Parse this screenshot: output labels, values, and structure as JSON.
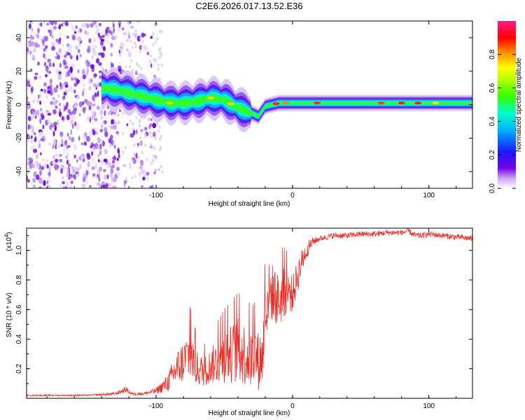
{
  "title": "C2E6.2026.017.13.52.E36",
  "chart_data": [
    {
      "type": "heatmap",
      "name": "spectrogram",
      "xlabel": "Height of straight line (km)",
      "ylabel": "Frequency (Hz)",
      "xlim": [
        -195,
        132
      ],
      "ylim": [
        -50,
        50
      ],
      "xticks": [
        -100,
        0,
        100
      ],
      "yticks": [
        -40,
        -20,
        0,
        20,
        40
      ],
      "xtick_labels": [
        "-100",
        "0",
        "100"
      ],
      "ytick_labels": [
        "-40",
        "-20",
        "0",
        "20",
        "40"
      ],
      "colorbar": {
        "label": "Normalized spectral amplitude",
        "range": [
          0,
          1
        ],
        "ticks": [
          0.0,
          0.2,
          0.4,
          0.6,
          0.8
        ],
        "tick_labels": [
          "0.0",
          "0.2",
          "0.4",
          "0.6",
          "0.8"
        ],
        "colormap": "rainbow (white-violet-blue-cyan-green-yellow-red-magenta)"
      },
      "trace": {
        "x": [
          -140,
          -130,
          -120,
          -110,
          -100,
          -90,
          -80,
          -70,
          -60,
          -50,
          -40,
          -30,
          -25,
          -20,
          -10,
          0,
          20,
          40,
          60,
          80,
          100,
          120,
          132
        ],
        "y": [
          10,
          9,
          7,
          5,
          3,
          1,
          1,
          2,
          4,
          3,
          -2,
          -5,
          -7,
          -1,
          1,
          1,
          1,
          1,
          1,
          1,
          1,
          1,
          1
        ]
      }
    },
    {
      "type": "line",
      "name": "snr",
      "xlabel": "Height of straight line (km)",
      "ylabel": "SNR (10 * v/v)",
      "y_multiplier": "(x10",
      "y_multiplier_exp": "4",
      "xlim": [
        -195,
        132
      ],
      "ylim": [
        0,
        1.15
      ],
      "xticks": [
        -100,
        0,
        100
      ],
      "yticks": [
        0.2,
        0.4,
        0.6,
        0.8,
        1.0
      ],
      "xtick_labels": [
        "-100",
        "0",
        "100"
      ],
      "ytick_labels": [
        "0.2",
        "0.4",
        "0.6",
        "0.8",
        "1.0"
      ],
      "color": "#e8312b",
      "series": [
        {
          "name": "SNR",
          "x": [
            -195,
            -150,
            -130,
            -122,
            -118,
            -110,
            -100,
            -92,
            -85,
            -80,
            -75,
            -70,
            -65,
            -60,
            -55,
            -50,
            -45,
            -40,
            -35,
            -30,
            -27,
            -25,
            -22,
            -20,
            -18,
            -16,
            -13,
            -10,
            -7,
            -5,
            -2,
            0,
            3,
            6,
            10,
            15,
            20,
            25,
            30,
            40,
            50,
            60,
            70,
            80,
            85,
            90,
            95,
            100,
            110,
            120,
            132
          ],
          "y": [
            0.02,
            0.02,
            0.03,
            0.06,
            0.03,
            0.03,
            0.05,
            0.1,
            0.2,
            0.25,
            0.3,
            0.2,
            0.18,
            0.22,
            0.25,
            0.28,
            0.3,
            0.32,
            0.3,
            0.26,
            0.3,
            0.25,
            0.28,
            0.55,
            0.7,
            0.72,
            0.7,
            0.65,
            0.7,
            0.72,
            0.72,
            0.7,
            0.8,
            0.9,
            1.0,
            1.06,
            1.08,
            1.09,
            1.1,
            1.1,
            1.11,
            1.11,
            1.12,
            1.12,
            1.13,
            1.1,
            1.1,
            1.11,
            1.1,
            1.09,
            1.08
          ],
          "noise": [
            0.005,
            0.005,
            0.01,
            0.02,
            0.01,
            0.01,
            0.02,
            0.06,
            0.12,
            0.15,
            0.18,
            0.12,
            0.1,
            0.12,
            0.15,
            0.18,
            0.2,
            0.22,
            0.22,
            0.2,
            0.2,
            0.2,
            0.2,
            0.22,
            0.22,
            0.2,
            0.2,
            0.18,
            0.18,
            0.16,
            0.14,
            0.12,
            0.12,
            0.1,
            0.06,
            0.03,
            0.02,
            0.02,
            0.02,
            0.02,
            0.02,
            0.02,
            0.02,
            0.02,
            0.02,
            0.02,
            0.02,
            0.02,
            0.02,
            0.02,
            0.02
          ]
        }
      ]
    }
  ]
}
